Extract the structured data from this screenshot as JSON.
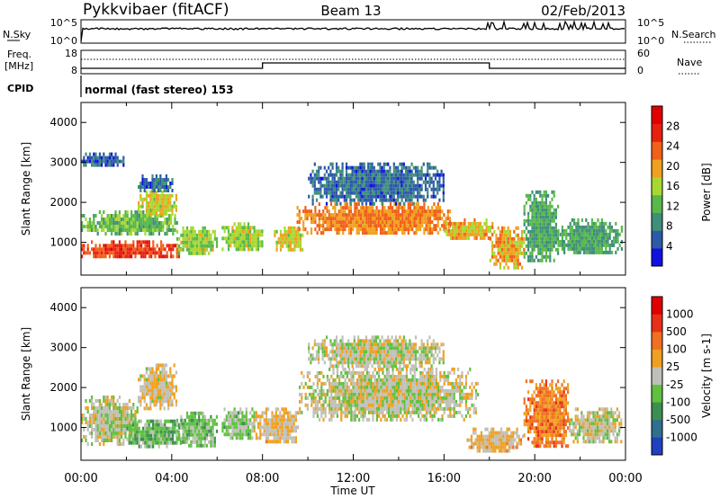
{
  "header": {
    "station": "Pykkvibaer (fitACF)",
    "beam": "Beam 13",
    "date": "02/Feb/2013"
  },
  "noise_panel": {
    "left_label": "N.Sky",
    "right_label": "N.Search",
    "left_ticks": [
      "10^5",
      "10^0"
    ],
    "right_ticks": [
      "10^5",
      "10^0"
    ]
  },
  "freq_panel": {
    "left_label_line1": "Freq.",
    "left_label_line2": "[MHz]",
    "right_label": "Nave",
    "left_ticks": [
      "18",
      "8"
    ],
    "right_ticks": [
      "60",
      "0"
    ]
  },
  "cpid": {
    "label": "CPID",
    "program": "normal (fast stereo) 153"
  },
  "x_axis": {
    "label": "Time UT",
    "ticks": [
      "00:00",
      "04:00",
      "08:00",
      "12:00",
      "16:00",
      "20:00",
      "00:00"
    ]
  },
  "y_axis": {
    "label": "Slant Range [km]",
    "ticks": [
      "1000",
      "2000",
      "3000",
      "4000"
    ]
  },
  "power_scale": {
    "label": "Power [dB]",
    "ticks": [
      "4",
      "8",
      "12",
      "16",
      "20",
      "24",
      "28"
    ],
    "colors": [
      "#1010e0",
      "#2c5aa8",
      "#3f8f7a",
      "#58b84a",
      "#a8d830",
      "#f0a020",
      "#f06018",
      "#e82010",
      "#e00000"
    ]
  },
  "velocity_scale": {
    "label": "Velocity [m s-1]",
    "ticks": [
      "1000",
      "500",
      "100",
      "25",
      "-25",
      "-100",
      "-500",
      "-1000"
    ],
    "colors": [
      "#2040c0",
      "#2f6f8f",
      "#3c8f50",
      "#60c040",
      "#c0c0b8",
      "#f0a020",
      "#f07020",
      "#e83018",
      "#e00000"
    ]
  },
  "chart_data": [
    {
      "type": "heatmap",
      "title": "Power",
      "xlabel": "Time UT",
      "ylabel": "Slant Range [km]",
      "xlim_hours": [
        0,
        24
      ],
      "ylim_km": [
        180,
        4500
      ],
      "colorbar": {
        "label": "Power [dB]",
        "range": [
          0,
          30
        ]
      },
      "blobs": [
        {
          "t0": 0.0,
          "t1": 4.4,
          "r0": 600,
          "r1": 1050,
          "v": 24
        },
        {
          "t0": 0.0,
          "t1": 4.2,
          "r0": 1200,
          "r1": 1800,
          "v": 12
        },
        {
          "t0": 2.5,
          "t1": 4.2,
          "r0": 1700,
          "r1": 2300,
          "v": 16
        },
        {
          "t0": 2.5,
          "t1": 4.0,
          "r0": 2300,
          "r1": 2700,
          "v": 6
        },
        {
          "t0": 0.0,
          "t1": 2.0,
          "r0": 2900,
          "r1": 3250,
          "v": 5
        },
        {
          "t0": 4.2,
          "t1": 6.0,
          "r0": 700,
          "r1": 1400,
          "v": 14
        },
        {
          "t0": 6.2,
          "t1": 8.0,
          "r0": 800,
          "r1": 1500,
          "v": 14
        },
        {
          "t0": 8.5,
          "t1": 9.8,
          "r0": 800,
          "r1": 1400,
          "v": 16
        },
        {
          "t0": 9.5,
          "t1": 16.3,
          "r0": 1200,
          "r1": 2000,
          "v": 20
        },
        {
          "t0": 10.0,
          "t1": 16.0,
          "r0": 2000,
          "r1": 3000,
          "v": 6
        },
        {
          "t0": 16.0,
          "t1": 18.2,
          "r0": 1100,
          "r1": 1600,
          "v": 18
        },
        {
          "t0": 18.0,
          "t1": 19.5,
          "r0": 400,
          "r1": 1400,
          "v": 18
        },
        {
          "t0": 19.5,
          "t1": 21.0,
          "r0": 500,
          "r1": 2300,
          "v": 10
        },
        {
          "t0": 21.0,
          "t1": 23.8,
          "r0": 700,
          "r1": 1600,
          "v": 10
        }
      ]
    },
    {
      "type": "heatmap",
      "title": "Velocity",
      "xlabel": "Time UT",
      "ylabel": "Slant Range [km]",
      "xlim_hours": [
        0,
        24
      ],
      "ylim_km": [
        180,
        4500
      ],
      "colorbar": {
        "label": "Velocity [m s-1]",
        "range": [
          -1000,
          1000
        ]
      },
      "blobs": [
        {
          "t0": 0.0,
          "t1": 2.5,
          "r0": 600,
          "r1": 1800,
          "v": -15
        },
        {
          "t0": 2.0,
          "t1": 4.4,
          "r0": 500,
          "r1": 1200,
          "v": -250
        },
        {
          "t0": 2.5,
          "t1": 4.2,
          "r0": 1500,
          "r1": 2600,
          "v": 80
        },
        {
          "t0": 4.2,
          "t1": 6.0,
          "r0": 500,
          "r1": 1400,
          "v": -200
        },
        {
          "t0": 6.2,
          "t1": 7.6,
          "r0": 700,
          "r1": 1500,
          "v": -150
        },
        {
          "t0": 7.6,
          "t1": 9.6,
          "r0": 600,
          "r1": 1500,
          "v": 120
        },
        {
          "t0": 9.6,
          "t1": 17.5,
          "r0": 1200,
          "r1": 2500,
          "v": 0
        },
        {
          "t0": 10.0,
          "t1": 16.0,
          "r0": 2500,
          "r1": 3300,
          "v": 0
        },
        {
          "t0": 17.0,
          "t1": 19.5,
          "r0": 400,
          "r1": 1000,
          "v": 150
        },
        {
          "t0": 19.5,
          "t1": 21.5,
          "r0": 500,
          "r1": 2200,
          "v": 400
        },
        {
          "t0": 21.5,
          "t1": 23.8,
          "r0": 600,
          "r1": 1500,
          "v": 0
        }
      ]
    }
  ]
}
